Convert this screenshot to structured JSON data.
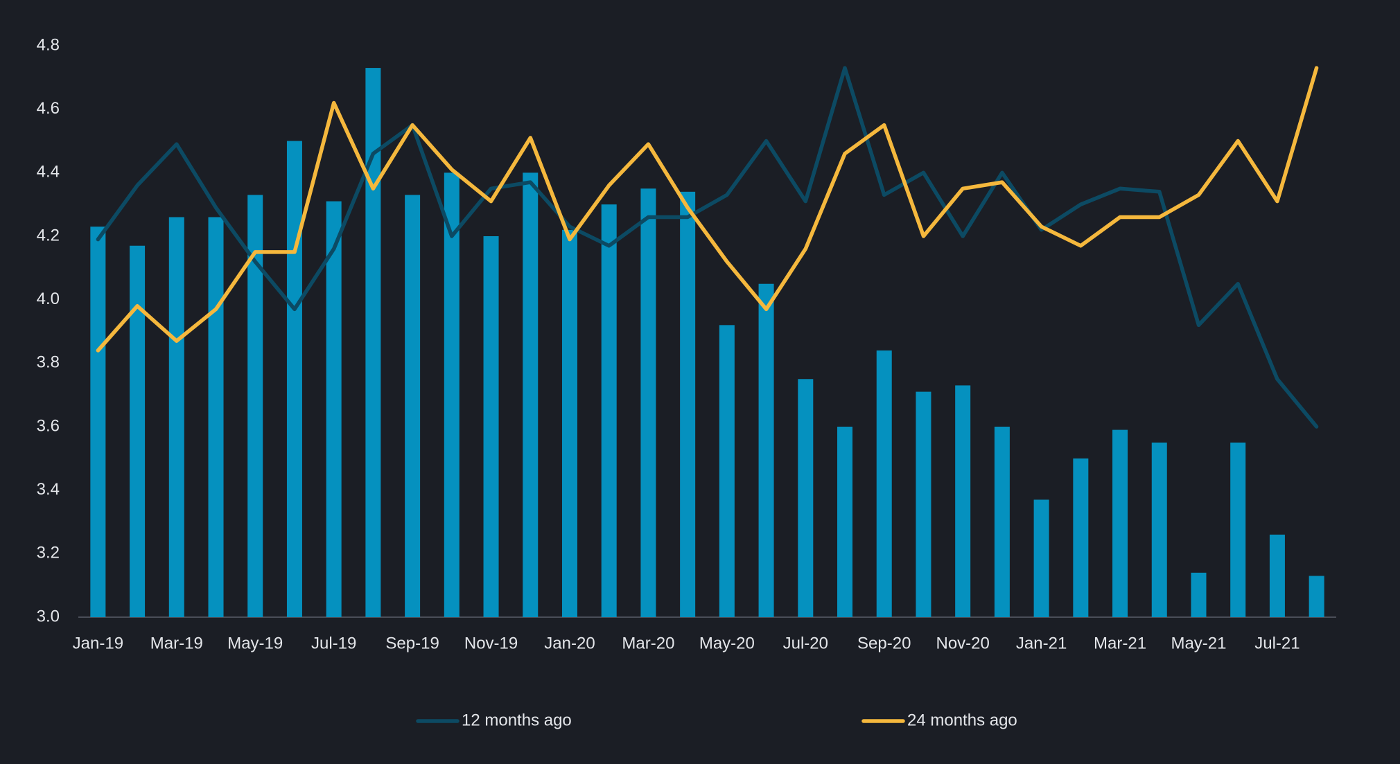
{
  "chart_data": {
    "type": "combo",
    "categories": [
      "Jan-19",
      null,
      "Mar-19",
      null,
      "May-19",
      null,
      "Jul-19",
      null,
      "Sep-19",
      null,
      "Nov-19",
      null,
      "Jan-20",
      null,
      "Mar-20",
      null,
      "May-20",
      null,
      "Jul-20",
      null,
      "Sep-20",
      null,
      "Nov-20",
      null,
      "Jan-21",
      null,
      "Mar-21",
      null,
      "May-21",
      null,
      "Jul-21",
      null
    ],
    "series": [
      {
        "type": "bar",
        "color": "#0591bf",
        "values": [
          4.23,
          4.17,
          4.26,
          4.26,
          4.33,
          4.5,
          4.31,
          4.73,
          4.33,
          4.4,
          4.2,
          4.4,
          4.22,
          4.3,
          4.35,
          4.34,
          3.92,
          4.05,
          3.75,
          3.6,
          3.84,
          3.71,
          3.73,
          3.6,
          3.37,
          3.5,
          3.59,
          3.55,
          3.14,
          3.55,
          3.26,
          3.13
        ]
      },
      {
        "type": "line",
        "name": "12 months ago",
        "color": "#0c4a63",
        "values": [
          4.19,
          4.36,
          4.49,
          4.29,
          4.12,
          3.97,
          4.16,
          4.46,
          4.55,
          4.2,
          4.35,
          4.37,
          4.23,
          4.17,
          4.26,
          4.26,
          4.33,
          4.5,
          4.31,
          4.73,
          4.33,
          4.4,
          4.2,
          4.4,
          4.22,
          4.3,
          4.35,
          4.34,
          3.92,
          4.05,
          3.75,
          3.6
        ]
      },
      {
        "type": "line",
        "name": "24 months ago",
        "color": "#f5b83d",
        "values": [
          3.84,
          3.98,
          3.87,
          3.97,
          4.15,
          4.15,
          4.62,
          4.35,
          4.55,
          4.41,
          4.31,
          4.51,
          4.19,
          4.36,
          4.49,
          4.29,
          4.12,
          3.97,
          4.16,
          4.46,
          4.55,
          4.2,
          4.35,
          4.37,
          4.23,
          4.17,
          4.26,
          4.26,
          4.33,
          4.5,
          4.31,
          4.73
        ]
      }
    ],
    "ylim": [
      3.0,
      4.8
    ],
    "yticks": [
      {
        "value": 3.0,
        "label": "3.0"
      },
      3.2,
      3.4,
      3.6,
      3.8,
      {
        "value": 4.0,
        "label": "4.0"
      },
      4.2,
      4.4,
      4.6,
      4.8
    ],
    "grid": false,
    "legend": "bottom"
  }
}
